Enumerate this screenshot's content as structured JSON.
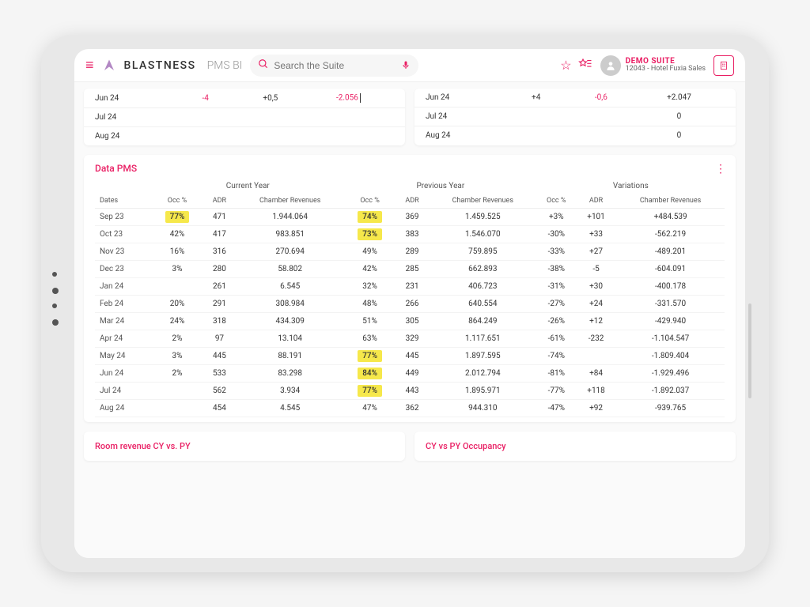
{
  "brand": {
    "name": "BLASTNESS",
    "sub": "PMS BI"
  },
  "search": {
    "placeholder": "Search the Suite"
  },
  "account": {
    "title": "DEMO SUITE",
    "sub": "12043 - Hotel Fuxia Sales"
  },
  "colors": {
    "accent": "#e91e63",
    "highlight": "#f6e84b",
    "neg": "#e91e63"
  },
  "mini_left": {
    "rows": [
      {
        "month": "Jun 24",
        "v1": "-4",
        "v2": "+0,5",
        "v3": "-2.056",
        "v1_neg": true,
        "v3_neg": true,
        "cursor": true
      },
      {
        "month": "Jul 24",
        "v1": "",
        "v2": "",
        "v3": ""
      },
      {
        "month": "Aug 24",
        "v1": "",
        "v2": "",
        "v3": ""
      }
    ]
  },
  "mini_right": {
    "rows": [
      {
        "month": "Jun 24",
        "v1": "+4",
        "v2": "-0,6",
        "v3": "+2.047",
        "v2_neg": true
      },
      {
        "month": "Jul 24",
        "v1": "",
        "v2": "",
        "v3": "0"
      },
      {
        "month": "Aug 24",
        "v1": "",
        "v2": "",
        "v3": "0"
      }
    ]
  },
  "datapms": {
    "title": "Data PMS",
    "groups": [
      "",
      "Current Year",
      "Previous Year",
      "Variations"
    ],
    "columns": [
      "Dates",
      "Occ %",
      "ADR",
      "Chamber Revenues",
      "Occ %",
      "ADR",
      "Chamber Revenues",
      "Occ %",
      "ADR",
      "Chamber Revenues"
    ],
    "rows": [
      {
        "date": "Sep 23",
        "cy_occ": "77%",
        "cy_occ_hl": true,
        "cy_adr": "471",
        "cy_rev": "1.944.064",
        "py_occ": "74%",
        "py_occ_hl": true,
        "py_adr": "369",
        "py_rev": "1.459.525",
        "v_occ": "+3%",
        "v_adr": "+101",
        "v_rev": "+484.539",
        "v_occ_neg": false,
        "v_adr_neg": false,
        "v_rev_neg": false
      },
      {
        "date": "Oct 23",
        "cy_occ": "42%",
        "cy_adr": "417",
        "cy_rev": "983.851",
        "py_occ": "73%",
        "py_occ_hl": true,
        "py_adr": "383",
        "py_rev": "1.546.070",
        "v_occ": "-30%",
        "v_adr": "+33",
        "v_rev": "-562.219",
        "v_occ_neg": true,
        "v_rev_neg": true
      },
      {
        "date": "Nov 23",
        "cy_occ": "16%",
        "cy_adr": "316",
        "cy_rev": "270.694",
        "py_occ": "49%",
        "py_adr": "289",
        "py_rev": "759.895",
        "v_occ": "-33%",
        "v_adr": "+27",
        "v_rev": "-489.201",
        "v_occ_neg": true,
        "v_rev_neg": true
      },
      {
        "date": "Dec 23",
        "cy_occ": "3%",
        "cy_adr": "280",
        "cy_rev": "58.802",
        "py_occ": "42%",
        "py_adr": "285",
        "py_rev": "662.893",
        "v_occ": "-38%",
        "v_adr": "-5",
        "v_rev": "-604.091",
        "v_occ_neg": true,
        "v_adr_neg": true,
        "v_rev_neg": true
      },
      {
        "date": "Jan 24",
        "cy_occ": "",
        "cy_adr": "261",
        "cy_rev": "6.545",
        "py_occ": "32%",
        "py_adr": "231",
        "py_rev": "406.723",
        "v_occ": "-31%",
        "v_adr": "+30",
        "v_rev": "-400.178",
        "v_occ_neg": true,
        "v_rev_neg": true
      },
      {
        "date": "Feb 24",
        "cy_occ": "20%",
        "cy_adr": "291",
        "cy_rev": "308.984",
        "py_occ": "48%",
        "py_adr": "266",
        "py_rev": "640.554",
        "v_occ": "-27%",
        "v_adr": "+24",
        "v_rev": "-331.570",
        "v_occ_neg": true,
        "v_rev_neg": true
      },
      {
        "date": "Mar 24",
        "cy_occ": "24%",
        "cy_adr": "318",
        "cy_rev": "434.309",
        "py_occ": "51%",
        "py_adr": "305",
        "py_rev": "864.249",
        "v_occ": "-26%",
        "v_adr": "+12",
        "v_rev": "-429.940",
        "v_occ_neg": true,
        "v_rev_neg": true
      },
      {
        "date": "Apr 24",
        "cy_occ": "2%",
        "cy_adr": "97",
        "cy_rev": "13.104",
        "py_occ": "63%",
        "py_adr": "329",
        "py_rev": "1.117.651",
        "v_occ": "-61%",
        "v_adr": "-232",
        "v_rev": "-1.104.547",
        "v_occ_neg": true,
        "v_adr_neg": true,
        "v_rev_neg": true
      },
      {
        "date": "May 24",
        "cy_occ": "3%",
        "cy_adr": "445",
        "cy_rev": "88.191",
        "py_occ": "77%",
        "py_occ_hl": true,
        "py_adr": "445",
        "py_rev": "1.897.595",
        "v_occ": "-74%",
        "v_adr": "",
        "v_rev": "-1.809.404",
        "v_occ_neg": true,
        "v_rev_neg": true
      },
      {
        "date": "Jun 24",
        "cy_occ": "2%",
        "cy_adr": "533",
        "cy_rev": "83.298",
        "py_occ": "84%",
        "py_occ_hl": true,
        "py_adr": "449",
        "py_rev": "2.012.794",
        "v_occ": "-81%",
        "v_adr": "+84",
        "v_rev": "-1.929.496",
        "v_occ_neg": true,
        "v_rev_neg": true
      },
      {
        "date": "Jul 24",
        "cy_occ": "",
        "cy_adr": "562",
        "cy_rev": "3.934",
        "py_occ": "77%",
        "py_occ_hl": true,
        "py_adr": "443",
        "py_rev": "1.895.971",
        "v_occ": "-77%",
        "v_adr": "+118",
        "v_rev": "-1.892.037",
        "v_occ_neg": true,
        "v_rev_neg": true
      },
      {
        "date": "Aug 24",
        "cy_occ": "",
        "cy_adr": "454",
        "cy_rev": "4.545",
        "py_occ": "47%",
        "py_adr": "362",
        "py_rev": "944.310",
        "v_occ": "-47%",
        "v_adr": "+92",
        "v_rev": "-939.765",
        "v_occ_neg": true,
        "v_rev_neg": true
      }
    ]
  },
  "bottom_left": {
    "title": "Room revenue CY vs. PY"
  },
  "bottom_right": {
    "title": "CY vs PY Occupancy"
  }
}
